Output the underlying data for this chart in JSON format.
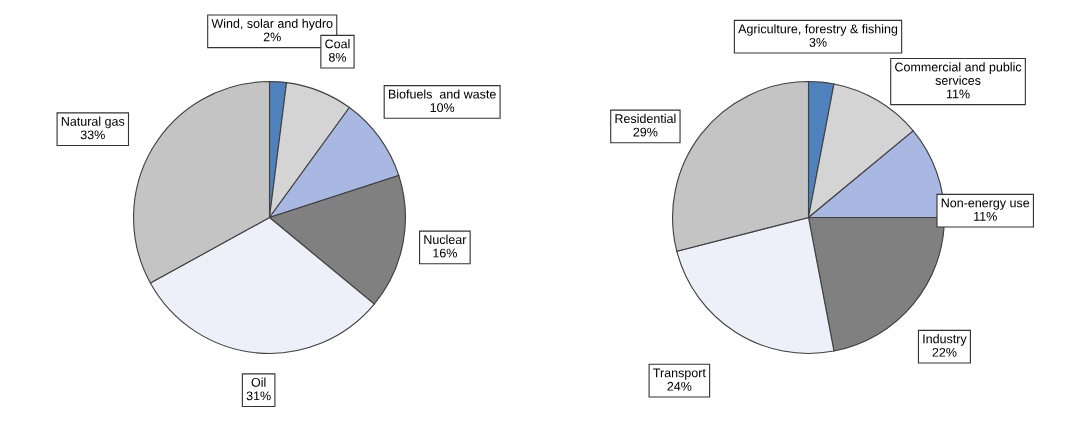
{
  "chart_data": [
    {
      "type": "pie",
      "categories": [
        "Wind, solar and hydro",
        "Coal",
        "Biofuels  and waste",
        "Nuclear",
        "Oil",
        "Natural gas"
      ],
      "values": [
        2,
        8,
        10,
        16,
        31,
        33
      ],
      "colors": [
        "#4f81bd",
        "#d4d4d4",
        "#a9b8e3",
        "#808080",
        "#eef0f9",
        "#c4c4c4"
      ],
      "value_labels": [
        "2%",
        "8%",
        "10%",
        "16%",
        "31%",
        "33%"
      ]
    },
    {
      "type": "pie",
      "categories": [
        "Agriculture, forestry & fishing",
        "Commercial and public\nservices",
        "Non-energy use",
        "Industry",
        "Transport",
        "Residential"
      ],
      "values": [
        3,
        11,
        11,
        22,
        24,
        29
      ],
      "colors": [
        "#4f81bd",
        "#d4d4d4",
        "#a9b8e3",
        "#808080",
        "#eef0f9",
        "#c4c4c4"
      ],
      "value_labels": [
        "3%",
        "11%",
        "11%",
        "22%",
        "24%",
        "29%"
      ]
    }
  ]
}
